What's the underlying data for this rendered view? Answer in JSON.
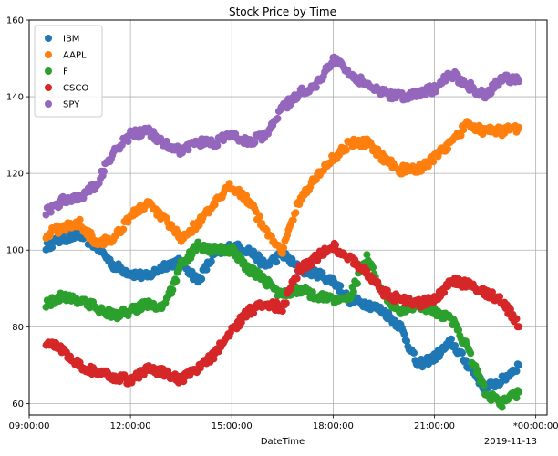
{
  "chart_data": {
    "type": "scatter",
    "title": "Stock Price by Time",
    "xlabel": "DateTime",
    "ylabel": "",
    "x_offset_label": "2019-11-13",
    "xlim": [
      "09:00:00",
      "24:20:00"
    ],
    "ylim": [
      57,
      160
    ],
    "x_ticks": [
      "09:00:00",
      "12:00:00",
      "15:00:00",
      "18:00:00",
      "21:00:00",
      "*00:00:00"
    ],
    "x_tick_hours": [
      9,
      12,
      15,
      18,
      21,
      24
    ],
    "y_ticks": [
      60,
      80,
      100,
      120,
      140,
      160
    ],
    "grid": true,
    "legend_position": "top-left",
    "series": [
      {
        "name": "IBM",
        "color": "#1f77b4",
        "x": [
          "09:30",
          "10:00",
          "10:30",
          "11:00",
          "11:30",
          "12:00",
          "12:30",
          "13:00",
          "13:30",
          "14:00",
          "14:30",
          "15:00",
          "15:30",
          "16:00",
          "16:30",
          "17:00",
          "17:30",
          "18:00",
          "18:30",
          "19:00",
          "19:30",
          "20:00",
          "20:30",
          "21:00",
          "21:30",
          "22:00",
          "22:30",
          "23:00",
          "23:30"
        ],
        "y": [
          101,
          103,
          104,
          101,
          96,
          94,
          93,
          96,
          97,
          92,
          99,
          101,
          100,
          96,
          99,
          95,
          94,
          92,
          87,
          86,
          84,
          80,
          70,
          72,
          76,
          70,
          64,
          66,
          70
        ]
      },
      {
        "name": "AAPL",
        "color": "#ff7f0e",
        "x": [
          "09:30",
          "10:00",
          "10:30",
          "11:00",
          "11:30",
          "12:00",
          "12:30",
          "13:00",
          "13:30",
          "14:00",
          "14:30",
          "15:00",
          "15:30",
          "16:00",
          "16:30",
          "17:00",
          "17:30",
          "18:00",
          "18:30",
          "19:00",
          "19:30",
          "20:00",
          "20:30",
          "21:00",
          "21:30",
          "22:00",
          "22:30",
          "23:00",
          "23:30"
        ],
        "y": [
          104,
          106,
          107,
          102,
          103,
          109,
          112,
          108,
          103,
          107,
          112,
          117,
          113,
          105,
          100,
          113,
          119,
          124,
          128,
          128,
          124,
          121,
          121,
          124,
          128,
          133,
          131,
          131,
          132
        ]
      },
      {
        "name": "F",
        "color": "#2ca02c",
        "x": [
          "09:30",
          "10:00",
          "10:30",
          "11:00",
          "11:30",
          "12:00",
          "12:30",
          "13:00",
          "13:30",
          "14:00",
          "14:30",
          "15:00",
          "15:30",
          "16:00",
          "16:30",
          "17:00",
          "17:30",
          "18:00",
          "18:30",
          "19:00",
          "19:30",
          "20:00",
          "20:30",
          "21:00",
          "21:30",
          "22:00",
          "22:30",
          "23:00",
          "23:30"
        ],
        "y": [
          86,
          88,
          87,
          85,
          83,
          84,
          86,
          85,
          96,
          101,
          100,
          100,
          95,
          92,
          88,
          90,
          88,
          87,
          88,
          98,
          88,
          84,
          86,
          84,
          82,
          74,
          63,
          60,
          63
        ]
      },
      {
        "name": "CSCO",
        "color": "#d62728",
        "x": [
          "09:30",
          "10:00",
          "10:30",
          "11:00",
          "11:30",
          "12:00",
          "12:30",
          "13:00",
          "13:30",
          "14:00",
          "14:30",
          "15:00",
          "15:30",
          "16:00",
          "16:30",
          "17:00",
          "17:30",
          "18:00",
          "18:30",
          "19:00",
          "19:30",
          "20:00",
          "20:30",
          "21:00",
          "21:30",
          "22:00",
          "22:30",
          "23:00",
          "23:30"
        ],
        "y": [
          76,
          74,
          70,
          68,
          67,
          66,
          69,
          68,
          66,
          69,
          73,
          79,
          84,
          86,
          85,
          95,
          98,
          101,
          98,
          94,
          89,
          87,
          86,
          87,
          92,
          91,
          89,
          87,
          80
        ]
      },
      {
        "name": "SPY",
        "color": "#9467bd",
        "x": [
          "09:30",
          "10:00",
          "10:30",
          "11:00",
          "11:30",
          "12:00",
          "12:30",
          "13:00",
          "13:30",
          "14:00",
          "14:30",
          "15:00",
          "15:30",
          "16:00",
          "16:30",
          "17:00",
          "17:30",
          "18:00",
          "18:30",
          "19:00",
          "19:30",
          "20:00",
          "20:30",
          "21:00",
          "21:30",
          "22:00",
          "22:30",
          "23:00",
          "23:30"
        ],
        "y": [
          110,
          113,
          114,
          117,
          126,
          130,
          131,
          128,
          126,
          128,
          128,
          130,
          128,
          130,
          137,
          141,
          143,
          150,
          146,
          143,
          141,
          140,
          141,
          142,
          146,
          143,
          140,
          145,
          144
        ]
      }
    ]
  }
}
